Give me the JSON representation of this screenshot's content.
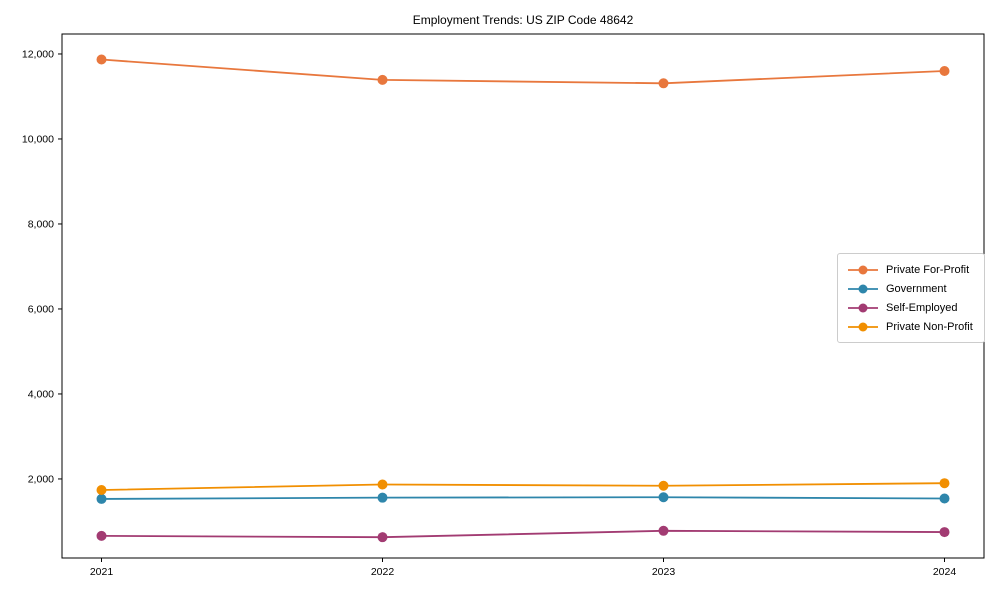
{
  "figure": {
    "background": "#ffffff",
    "spine_color": "#000000"
  },
  "chart_data": {
    "type": "line",
    "title": "Employment Trends: US ZIP Code 48642",
    "xlabel": "",
    "ylabel": "",
    "x": [
      "2021",
      "2022",
      "2023",
      "2024"
    ],
    "series": [
      {
        "name": "Private For-Profit",
        "color": "#E8773D",
        "values": [
          11870,
          11390,
          11310,
          11600
        ]
      },
      {
        "name": "Government",
        "color": "#2E86AB",
        "values": [
          1530,
          1560,
          1570,
          1540
        ]
      },
      {
        "name": "Self-Employed",
        "color": "#A23B72",
        "values": [
          660,
          630,
          780,
          750
        ]
      },
      {
        "name": "Private Non-Profit",
        "color": "#F18F01",
        "values": [
          1740,
          1870,
          1840,
          1900
        ]
      }
    ],
    "ylim": [
      140,
      12470
    ],
    "yticks": [
      2000,
      4000,
      6000,
      8000,
      10000,
      12000
    ],
    "ytick_labels": [
      "2,000",
      "4,000",
      "6,000",
      "8,000",
      "10,000",
      "12,000"
    ],
    "grid": false,
    "legend_position": "center-right",
    "marker": "circle",
    "marker_radius": 5,
    "line_width": 1.8
  }
}
